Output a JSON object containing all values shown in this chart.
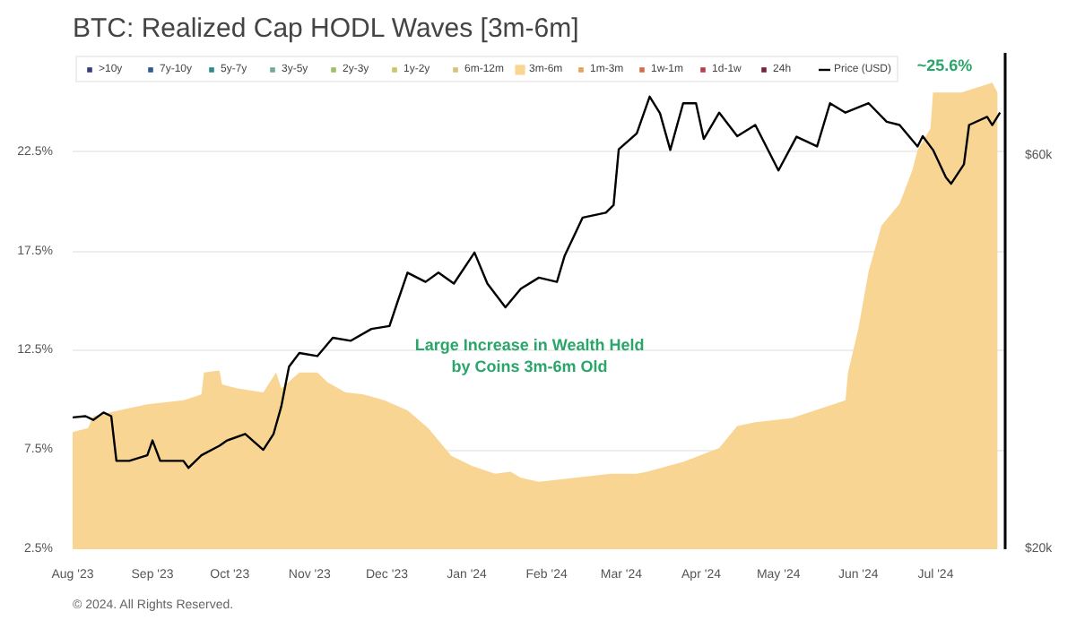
{
  "chart_data": {
    "type": "area",
    "title": "BTC: Realized Cap HODL Waves [3m-6m]",
    "xlim": [
      "2023-08-01",
      "2024-07-28"
    ],
    "xticks": [
      {
        "value": "2023-08-01",
        "label": "Aug '23"
      },
      {
        "value": "2023-09-01",
        "label": "Sep '23"
      },
      {
        "value": "2023-10-01",
        "label": "Oct '23"
      },
      {
        "value": "2023-11-01",
        "label": "Nov '23"
      },
      {
        "value": "2023-12-01",
        "label": "Dec '23"
      },
      {
        "value": "2024-01-01",
        "label": "Jan '24"
      },
      {
        "value": "2024-02-01",
        "label": "Feb '24"
      },
      {
        "value": "2024-03-01",
        "label": "Mar '24"
      },
      {
        "value": "2024-04-01",
        "label": "Apr '24"
      },
      {
        "value": "2024-05-01",
        "label": "May '24"
      },
      {
        "value": "2024-06-01",
        "label": "Jun '24"
      },
      {
        "value": "2024-07-01",
        "label": "Jul '24"
      }
    ],
    "ylim": [
      2.5,
      27.5
    ],
    "yticks": [
      {
        "value": 2.5,
        "label": "2.5%"
      },
      {
        "value": 7.5,
        "label": "7.5%"
      },
      {
        "value": 12.5,
        "label": "12.5%"
      },
      {
        "value": 17.5,
        "label": "17.5%"
      },
      {
        "value": 22.5,
        "label": "22.5%"
      }
    ],
    "y2lim": [
      20000,
      80000
    ],
    "log": "y2",
    "y2ticks": [
      {
        "value": 20000,
        "label": "$20k"
      },
      {
        "value": 60000,
        "label": "$60k"
      }
    ],
    "grid": "y",
    "legend": "top",
    "series": [
      {
        "name": ">10y",
        "color": "#3b3b7a"
      },
      {
        "name": "7y-10y",
        "color": "#2e5c8a"
      },
      {
        "name": "5y-7y",
        "color": "#2e8b8b"
      },
      {
        "name": "3y-5y",
        "color": "#6fae8f"
      },
      {
        "name": "2y-3y",
        "color": "#9cbf6b"
      },
      {
        "name": "1y-2y",
        "color": "#c8c86a"
      },
      {
        "name": "6m-12m",
        "color": "#d8c27a"
      },
      {
        "name": "3m-6m",
        "color": "#f9d593",
        "x": [
          "2023-08-01",
          "2023-08-07",
          "2023-08-09",
          "2023-08-19",
          "2023-08-30",
          "2023-09-13",
          "2023-09-20",
          "2023-09-21",
          "2023-09-27",
          "2023-09-28",
          "2023-10-04",
          "2023-10-14",
          "2023-10-19",
          "2023-10-21",
          "2023-10-28",
          "2023-11-04",
          "2023-11-08",
          "2023-11-15",
          "2023-11-22",
          "2023-11-30",
          "2023-12-09",
          "2023-12-17",
          "2023-12-26",
          "2024-01-03",
          "2024-01-12",
          "2024-01-18",
          "2024-01-22",
          "2024-01-29",
          "2024-02-12",
          "2024-02-26",
          "2024-03-07",
          "2024-03-11",
          "2024-03-25",
          "2024-04-08",
          "2024-04-15",
          "2024-04-22",
          "2024-05-06",
          "2024-05-20",
          "2024-05-27",
          "2024-05-28",
          "2024-06-01",
          "2024-06-05",
          "2024-06-10",
          "2024-06-17",
          "2024-06-22",
          "2024-06-24",
          "2024-06-29",
          "2024-06-30",
          "2024-07-11",
          "2024-07-23",
          "2024-07-25"
        ],
        "values": [
          8.4,
          8.6,
          9.2,
          9.5,
          9.8,
          10.0,
          10.3,
          11.4,
          11.5,
          10.8,
          10.6,
          10.4,
          11.4,
          10.6,
          11.4,
          11.4,
          10.9,
          10.4,
          10.3,
          10.0,
          9.5,
          8.6,
          7.2,
          6.7,
          6.3,
          6.4,
          6.1,
          5.9,
          6.1,
          6.3,
          6.3,
          6.4,
          6.9,
          7.6,
          8.7,
          8.9,
          9.1,
          9.7,
          10.0,
          11.4,
          13.6,
          16.5,
          18.8,
          19.9,
          21.6,
          22.6,
          23.7,
          25.5,
          25.5,
          26.0,
          25.5
        ]
      },
      {
        "name": "1m-3m",
        "color": "#e8a05a"
      },
      {
        "name": "1w-1m",
        "color": "#d9694a"
      },
      {
        "name": "1d-1w",
        "color": "#b83d4f"
      },
      {
        "name": "24h",
        "color": "#7a1f3d"
      },
      {
        "name": "Price (USD)",
        "type": "line",
        "axis": "y2",
        "color": "#000000",
        "x": [
          "2023-08-01",
          "2023-08-06",
          "2023-08-09",
          "2023-08-13",
          "2023-08-16",
          "2023-08-18",
          "2023-08-23",
          "2023-08-30",
          "2023-09-01",
          "2023-09-04",
          "2023-09-13",
          "2023-09-15",
          "2023-09-20",
          "2023-09-27",
          "2023-09-30",
          "2023-10-07",
          "2023-10-14",
          "2023-10-18",
          "2023-10-21",
          "2023-10-24",
          "2023-10-28",
          "2023-11-04",
          "2023-11-10",
          "2023-11-17",
          "2023-11-25",
          "2023-12-02",
          "2023-12-05",
          "2023-12-09",
          "2023-12-16",
          "2023-12-21",
          "2023-12-27",
          "2024-01-04",
          "2024-01-09",
          "2024-01-16",
          "2024-01-22",
          "2024-01-29",
          "2024-02-05",
          "2024-02-08",
          "2024-02-15",
          "2024-02-24",
          "2024-02-27",
          "2024-02-29",
          "2024-03-07",
          "2024-03-12",
          "2024-03-16",
          "2024-03-20",
          "2024-03-25",
          "2024-03-30",
          "2024-04-02",
          "2024-04-08",
          "2024-04-15",
          "2024-04-22",
          "2024-05-01",
          "2024-05-08",
          "2024-05-16",
          "2024-05-21",
          "2024-05-27",
          "2024-06-05",
          "2024-06-12",
          "2024-06-17",
          "2024-06-24",
          "2024-06-26",
          "2024-06-30",
          "2024-07-05",
          "2024-07-07",
          "2024-07-12",
          "2024-07-14",
          "2024-07-21",
          "2024-07-23",
          "2024-07-26"
        ],
        "values": [
          28900,
          29000,
          28700,
          29300,
          29000,
          25600,
          25600,
          26000,
          27100,
          25600,
          25600,
          25100,
          26000,
          26700,
          27100,
          27600,
          26400,
          27600,
          29800,
          33300,
          34600,
          34300,
          36100,
          35800,
          37000,
          37300,
          39800,
          43300,
          42200,
          43300,
          42000,
          45800,
          42000,
          39300,
          41400,
          42700,
          42200,
          45400,
          50500,
          51200,
          52300,
          61100,
          63900,
          70800,
          67600,
          61000,
          69500,
          69500,
          62900,
          67700,
          63400,
          65400,
          57600,
          63300,
          61600,
          69500,
          67700,
          69500,
          66000,
          65400,
          61600,
          63400,
          61000,
          56500,
          55500,
          58600,
          65400,
          66900,
          65400,
          67700
        ]
      }
    ],
    "annotations": [
      "Large Increase in Wealth Held\nby Coins 3m-6m Old",
      "~25.6%",
      "© 2024. All Rights Reserved."
    ]
  }
}
